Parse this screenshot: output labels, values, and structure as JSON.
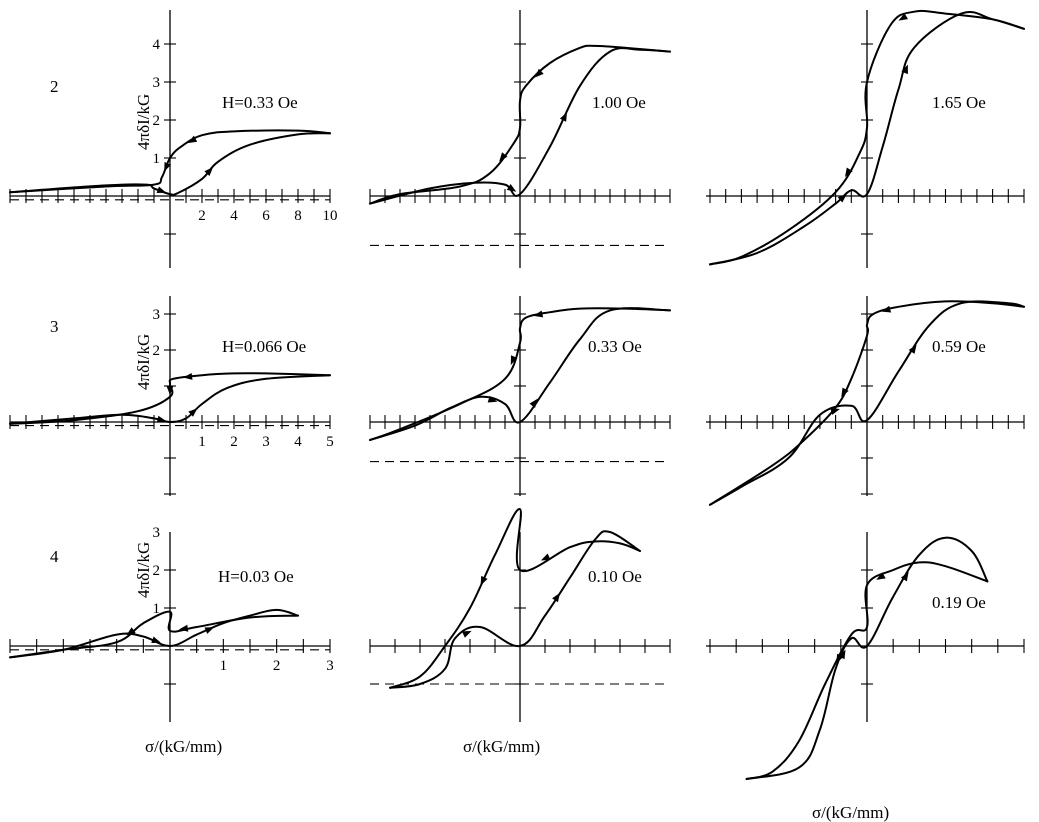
{
  "figure": {
    "ylabel": "4πδI/kG",
    "xlabel": "σ/(kG/mm)",
    "rows": [
      {
        "label": "2",
        "fields": [
          "H=0.33  Oe",
          "1.00  Oe",
          "1.65  Oe"
        ]
      },
      {
        "label": "3",
        "fields": [
          "H=0.066  Oe",
          "0.33  Oe",
          "0.59  Oe"
        ]
      },
      {
        "label": "4",
        "fields": [
          "H=0.03  Oe",
          "0.10  Oe",
          "0.19  Oe"
        ]
      }
    ]
  },
  "chart_data": [
    {
      "type": "line",
      "row": "2",
      "column": 1,
      "field": "H=0.33  Oe",
      "xlabel": "",
      "ylabel": "4πδI/kG",
      "xticks": [
        2,
        4,
        6,
        8,
        10
      ],
      "yticks": [
        1,
        2,
        3,
        4
      ],
      "xlim": [
        -10,
        10
      ],
      "ylim": [
        -2,
        4.5
      ],
      "dashed_level": -0.1,
      "series": [
        {
          "values": [
            [
              10,
              1.65
            ],
            [
              8,
              1.72
            ],
            [
              4,
              1.7
            ],
            [
              2,
              1.6
            ],
            [
              0.7,
              1.3
            ],
            [
              0,
              1.0
            ],
            [
              -0.5,
              0.5
            ],
            [
              -1,
              0.3
            ],
            [
              -4,
              0.25
            ],
            [
              -10,
              0.1
            ]
          ]
        },
        {
          "values": [
            [
              -10,
              0.1
            ],
            [
              -4,
              0.28
            ],
            [
              -1.5,
              0.3
            ],
            [
              -1,
              0.2
            ],
            [
              0,
              0.05
            ],
            [
              0.5,
              0.08
            ],
            [
              2,
              0.45
            ],
            [
              3,
              0.9
            ],
            [
              5,
              1.35
            ],
            [
              8,
              1.62
            ],
            [
              10,
              1.65
            ]
          ]
        }
      ]
    },
    {
      "type": "line",
      "row": "2",
      "column": 2,
      "field": "1.00  Oe",
      "xlabel": "",
      "ylabel": "",
      "xticks": [],
      "yticks": [],
      "xlim": [
        -10,
        10
      ],
      "ylim": [
        -5,
        5
      ],
      "dashed_level": -1.3,
      "series": [
        {
          "values": [
            [
              10,
              3.8
            ],
            [
              7,
              3.9
            ],
            [
              5,
              3.95
            ],
            [
              4,
              3.9
            ],
            [
              2,
              3.5
            ],
            [
              0.4,
              2.9
            ],
            [
              0,
              2.5
            ],
            [
              0,
              1.8
            ],
            [
              -0.4,
              1.4
            ],
            [
              -2,
              0.6
            ],
            [
              -4,
              0.25
            ],
            [
              -8,
              0.05
            ],
            [
              -10,
              -0.2
            ]
          ]
        },
        {
          "values": [
            [
              -10,
              -0.2
            ],
            [
              -6,
              0.2
            ],
            [
              -3,
              0.35
            ],
            [
              -1,
              0.3
            ],
            [
              0,
              0.05
            ],
            [
              2,
              1.3
            ],
            [
              4,
              2.9
            ],
            [
              6,
              3.8
            ],
            [
              8,
              3.85
            ],
            [
              10,
              3.8
            ]
          ]
        }
      ]
    },
    {
      "type": "line",
      "row": "2",
      "column": 3,
      "field": "1.65  Oe",
      "xlabel": "",
      "ylabel": "",
      "xticks": [],
      "yticks": [],
      "xlim": [
        -10,
        10
      ],
      "ylim": [
        -5,
        5
      ],
      "series": [
        {
          "values": [
            [
              10,
              4.4
            ],
            [
              8,
              4.65
            ],
            [
              5,
              4.8
            ],
            [
              3,
              4.85
            ],
            [
              1.5,
              4.5
            ],
            [
              0,
              3.0
            ],
            [
              0,
              1.8
            ],
            [
              -0.5,
              1.1
            ],
            [
              -2,
              0.1
            ],
            [
              -5,
              -0.9
            ],
            [
              -8,
              -1.6
            ],
            [
              -10,
              -1.8
            ]
          ]
        },
        {
          "values": [
            [
              -10,
              -1.8
            ],
            [
              -7,
              -1.5
            ],
            [
              -4,
              -0.8
            ],
            [
              -2,
              -0.2
            ],
            [
              -1,
              0.15
            ],
            [
              0,
              0.05
            ],
            [
              1,
              1.3
            ],
            [
              2,
              2.8
            ],
            [
              3,
              3.9
            ],
            [
              6,
              4.8
            ],
            [
              8,
              4.65
            ],
            [
              10,
              4.4
            ]
          ]
        }
      ]
    },
    {
      "type": "line",
      "row": "3",
      "column": 1,
      "field": "H=0.066  Oe",
      "xlabel": "",
      "ylabel": "4πδI/kG",
      "xticks": [
        1,
        2,
        3,
        4,
        5
      ],
      "yticks": [
        2,
        3
      ],
      "xlim": [
        -5,
        5
      ],
      "ylim": [
        -2,
        3.3
      ],
      "dashed_level": -0.1,
      "series": [
        {
          "values": [
            [
              5,
              1.3
            ],
            [
              3,
              1.35
            ],
            [
              2,
              1.35
            ],
            [
              1,
              1.3
            ],
            [
              0.1,
              1.2
            ],
            [
              0,
              1.05
            ],
            [
              0,
              0.7
            ],
            [
              -1,
              0.3
            ],
            [
              -3,
              0.05
            ],
            [
              -5,
              -0.05
            ]
          ]
        },
        {
          "values": [
            [
              -5,
              -0.05
            ],
            [
              -3,
              0.1
            ],
            [
              -1.5,
              0.2
            ],
            [
              -0.5,
              0.1
            ],
            [
              0,
              0.0
            ],
            [
              0.5,
              0.1
            ],
            [
              1,
              0.5
            ],
            [
              1.8,
              0.95
            ],
            [
              3,
              1.2
            ],
            [
              5,
              1.3
            ]
          ]
        }
      ]
    },
    {
      "type": "line",
      "row": "3",
      "column": 2,
      "field": "0.33  Oe",
      "xlabel": "",
      "ylabel": "",
      "xticks": [],
      "yticks": [],
      "xlim": [
        -5,
        5
      ],
      "ylim": [
        -3,
        4
      ],
      "dashed_level": -1.1,
      "series": [
        {
          "values": [
            [
              5,
              3.1
            ],
            [
              3.5,
              3.15
            ],
            [
              2,
              3.15
            ],
            [
              1,
              3.05
            ],
            [
              0.2,
              2.9
            ],
            [
              0,
              2.6
            ],
            [
              0,
              2.2
            ],
            [
              -0.5,
              1.2
            ],
            [
              -2,
              0.5
            ],
            [
              -4,
              -0.2
            ],
            [
              -5,
              -0.5
            ]
          ]
        },
        {
          "values": [
            [
              -5,
              -0.5
            ],
            [
              -3.5,
              -0.1
            ],
            [
              -2.3,
              0.4
            ],
            [
              -1.3,
              0.7
            ],
            [
              -0.5,
              0.5
            ],
            [
              0,
              0.0
            ],
            [
              1,
              1.1
            ],
            [
              2,
              2.3
            ],
            [
              3,
              3.1
            ],
            [
              5,
              3.1
            ]
          ]
        }
      ]
    },
    {
      "type": "line",
      "row": "3",
      "column": 3,
      "field": "0.59  Oe",
      "xlabel": "",
      "ylabel": "",
      "xticks": [],
      "yticks": [],
      "xlim": [
        -5,
        5
      ],
      "ylim": [
        -3,
        4
      ],
      "series": [
        {
          "values": [
            [
              5,
              3.2
            ],
            [
              4,
              3.3
            ],
            [
              2.5,
              3.35
            ],
            [
              1,
              3.2
            ],
            [
              0.2,
              3.0
            ],
            [
              0,
              2.7
            ],
            [
              0,
              2.4
            ],
            [
              -0.5,
              1.2
            ],
            [
              -1,
              0.4
            ],
            [
              -2,
              -0.5
            ],
            [
              -3,
              -1.2
            ],
            [
              -5,
              -2.3
            ]
          ]
        },
        {
          "values": [
            [
              -5,
              -2.3
            ],
            [
              -4,
              -1.8
            ],
            [
              -2.5,
              -1.0
            ],
            [
              -1.5,
              0.2
            ],
            [
              -0.5,
              0.45
            ],
            [
              0,
              0.05
            ],
            [
              1,
              1.4
            ],
            [
              2,
              2.7
            ],
            [
              3,
              3.3
            ],
            [
              4.5,
              3.3
            ],
            [
              5,
              3.2
            ]
          ]
        }
      ]
    },
    {
      "type": "line",
      "row": "4",
      "column": 1,
      "field": "H=0.03  Oe",
      "xlabel": "σ/(kG/mm)",
      "ylabel": "4πδI/kG",
      "xticks": [
        1,
        2,
        3
      ],
      "yticks": [
        1,
        2,
        3
      ],
      "xlim": [
        -3,
        3
      ],
      "ylim": [
        -2,
        3.2
      ],
      "dashed_level": -0.1,
      "series": [
        {
          "values": [
            [
              2.4,
              0.8
            ],
            [
              1.5,
              0.75
            ],
            [
              0.5,
              0.5
            ],
            [
              0,
              0.4
            ],
            [
              0,
              0.9
            ],
            [
              -0.5,
              0.6
            ],
            [
              -1,
              0.1
            ],
            [
              -2,
              -0.1
            ],
            [
              -3,
              -0.3
            ]
          ]
        },
        {
          "values": [
            [
              -3,
              -0.3
            ],
            [
              -2,
              -0.1
            ],
            [
              -1,
              0.3
            ],
            [
              -0.5,
              0.25
            ],
            [
              0,
              0.0
            ],
            [
              0.5,
              0.3
            ],
            [
              1,
              0.6
            ],
            [
              1.5,
              0.8
            ],
            [
              2,
              0.95
            ],
            [
              2.4,
              0.8
            ]
          ]
        }
      ]
    },
    {
      "type": "line",
      "row": "4",
      "column": 2,
      "field": "0.10  Oe",
      "xlabel": "σ/(kG/mm)",
      "ylabel": "",
      "xticks": [],
      "yticks": [],
      "xlim": [
        -3,
        3
      ],
      "ylim": [
        -3,
        3.6
      ],
      "dashed_level": -1.0,
      "series": [
        {
          "values": [
            [
              2.4,
              2.5
            ],
            [
              2,
              2.7
            ],
            [
              1.5,
              2.75
            ],
            [
              1,
              2.6
            ],
            [
              0,
              2.0
            ],
            [
              0,
              3.6
            ],
            [
              -0.5,
              2.4
            ],
            [
              -1,
              1.0
            ],
            [
              -1.5,
              0.0
            ],
            [
              -2,
              -0.8
            ],
            [
              -2.6,
              -1.1
            ]
          ]
        },
        {
          "values": [
            [
              -2.6,
              -1.1
            ],
            [
              -2,
              -1.0
            ],
            [
              -1.5,
              -0.6
            ],
            [
              -1.3,
              0.2
            ],
            [
              -0.8,
              0.5
            ],
            [
              0,
              0.0
            ],
            [
              0.5,
              0.8
            ],
            [
              1,
              1.8
            ],
            [
              1.5,
              2.8
            ],
            [
              1.8,
              3.0
            ],
            [
              2.4,
              2.5
            ]
          ]
        }
      ]
    },
    {
      "type": "line",
      "row": "4",
      "column": 3,
      "field": "0.19  Oe",
      "xlabel": "σ/(kG/mm)",
      "ylabel": "",
      "xticks": [],
      "yticks": [],
      "xlim": [
        -3,
        3
      ],
      "ylim": [
        -3.4,
        3.6
      ],
      "series": [
        {
          "values": [
            [
              2.3,
              1.7
            ],
            [
              1.5,
              2.1
            ],
            [
              1,
              2.2
            ],
            [
              0.5,
              2.0
            ],
            [
              0,
              1.6
            ],
            [
              0,
              0.5
            ],
            [
              -0.3,
              0.3
            ],
            [
              -0.8,
              -1.0
            ],
            [
              -1.3,
              -2.5
            ],
            [
              -1.8,
              -3.3
            ],
            [
              -2.3,
              -3.5
            ]
          ]
        },
        {
          "values": [
            [
              -2.3,
              -3.5
            ],
            [
              -1.3,
              -3.2
            ],
            [
              -0.9,
              -2.2
            ],
            [
              -0.6,
              -0.6
            ],
            [
              -0.3,
              0.2
            ],
            [
              0,
              0.0
            ],
            [
              0.5,
              1.3
            ],
            [
              1,
              2.4
            ],
            [
              1.5,
              2.85
            ],
            [
              2,
              2.5
            ],
            [
              2.3,
              1.7
            ]
          ]
        }
      ]
    }
  ]
}
